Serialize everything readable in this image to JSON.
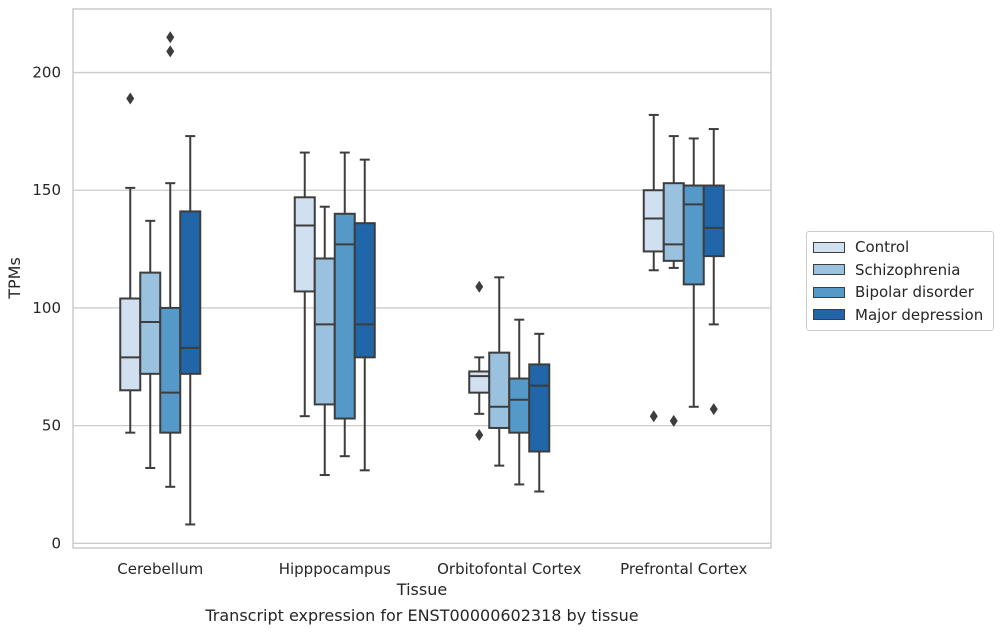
{
  "caption": "Transcript expression for ENST00000602318 by tissue",
  "chart_data": {
    "type": "box",
    "xlabel": "Tissue",
    "ylabel": "TPMs",
    "ylim": [
      -2,
      227
    ],
    "yticks": [
      0,
      50,
      100,
      150,
      200
    ],
    "grid": true,
    "legend_position": "right",
    "categories": [
      "Cerebellum",
      "Hipppocampus",
      "Orbitofontal Cortex",
      "Prefrontal Cortex"
    ],
    "series": [
      {
        "name": "Control",
        "color": "#d1e0f0",
        "boxes": [
          {
            "whisker_low": 47,
            "q1": 65,
            "median": 79,
            "q3": 104,
            "whisker_high": 151,
            "outliers": [
              189
            ]
          },
          {
            "whisker_low": 54,
            "q1": 107,
            "median": 135,
            "q3": 147,
            "whisker_high": 166,
            "outliers": []
          },
          {
            "whisker_low": 55,
            "q1": 64,
            "median": 71,
            "q3": 73,
            "whisker_high": 79,
            "outliers": [
              46,
              109
            ]
          },
          {
            "whisker_low": 116,
            "q1": 124,
            "median": 138,
            "q3": 150,
            "whisker_high": 182,
            "outliers": [
              54
            ]
          }
        ]
      },
      {
        "name": "Schizophrenia",
        "color": "#9ac2de",
        "boxes": [
          {
            "whisker_low": 32,
            "q1": 72,
            "median": 94,
            "q3": 115,
            "whisker_high": 137,
            "outliers": []
          },
          {
            "whisker_low": 29,
            "q1": 59,
            "median": 93,
            "q3": 121,
            "whisker_high": 143,
            "outliers": []
          },
          {
            "whisker_low": 33,
            "q1": 49,
            "median": 58,
            "q3": 81,
            "whisker_high": 113,
            "outliers": []
          },
          {
            "whisker_low": 117,
            "q1": 120,
            "median": 127,
            "q3": 153,
            "whisker_high": 173,
            "outliers": [
              52
            ]
          }
        ]
      },
      {
        "name": "Bipolar disorder",
        "color": "#5599c8",
        "boxes": [
          {
            "whisker_low": 24,
            "q1": 47,
            "median": 64,
            "q3": 100,
            "whisker_high": 153,
            "outliers": [
              209,
              215
            ]
          },
          {
            "whisker_low": 37,
            "q1": 53,
            "median": 127,
            "q3": 140,
            "whisker_high": 166,
            "outliers": []
          },
          {
            "whisker_low": 25,
            "q1": 47,
            "median": 61,
            "q3": 70,
            "whisker_high": 95,
            "outliers": []
          },
          {
            "whisker_low": 58,
            "q1": 110,
            "median": 144,
            "q3": 152,
            "whisker_high": 172,
            "outliers": []
          }
        ]
      },
      {
        "name": "Major depression",
        "color": "#2166a8",
        "boxes": [
          {
            "whisker_low": 8,
            "q1": 72,
            "median": 83,
            "q3": 141,
            "whisker_high": 173,
            "outliers": []
          },
          {
            "whisker_low": 31,
            "q1": 79,
            "median": 93,
            "q3": 136,
            "whisker_high": 163,
            "outliers": []
          },
          {
            "whisker_low": 22,
            "q1": 39,
            "median": 67,
            "q3": 76,
            "whisker_high": 89,
            "outliers": []
          },
          {
            "whisker_low": 93,
            "q1": 122,
            "median": 134,
            "q3": 152,
            "whisker_high": 176,
            "outliers": [
              57
            ]
          }
        ]
      }
    ]
  }
}
